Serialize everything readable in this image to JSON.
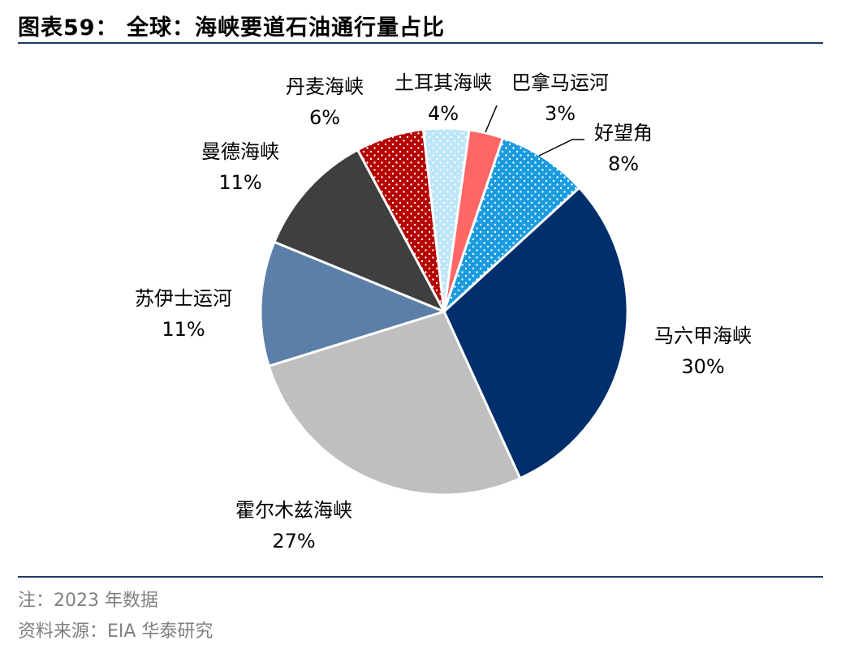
{
  "title": "图表59：  全球：海峡要道石油通行量占比",
  "footer": {
    "note": "注：2023 年数据",
    "source": "资料来源：EIA 华泰研究"
  },
  "chart_data": {
    "type": "pie",
    "title": "全球：海峡要道石油通行量占比",
    "slices": [
      {
        "name": "马六甲海峡",
        "value": 30,
        "label": "30%",
        "color": "#002f6c",
        "pattern": "solid"
      },
      {
        "name": "霍尔木兹海峡",
        "value": 27,
        "label": "27%",
        "color": "#bfbfbf",
        "pattern": "solid"
      },
      {
        "name": "苏伊士运河",
        "value": 11,
        "label": "11%",
        "color": "#5b7fa8",
        "pattern": "solid"
      },
      {
        "name": "曼德海峡",
        "value": 11,
        "label": "11%",
        "color": "#3f3f3f",
        "pattern": "solid"
      },
      {
        "name": "丹麦海峡",
        "value": 6,
        "label": "6%",
        "color": "#b50000",
        "pattern": "dots"
      },
      {
        "name": "土耳其海峡",
        "value": 4,
        "label": "4%",
        "color": "#bde6f8",
        "pattern": "dots"
      },
      {
        "name": "巴拿马运河",
        "value": 3,
        "label": "3%",
        "color": "#ff6666",
        "pattern": "solid"
      },
      {
        "name": "好望角",
        "value": 8,
        "label": "8%",
        "color": "#1a9be0",
        "pattern": "dots"
      }
    ]
  }
}
